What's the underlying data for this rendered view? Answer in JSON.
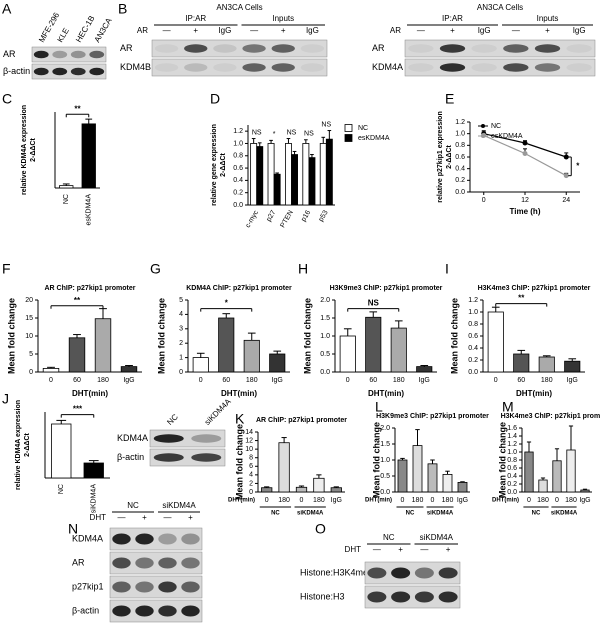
{
  "panel_labels": [
    "A",
    "B",
    "C",
    "D",
    "E",
    "F",
    "G",
    "H",
    "I",
    "J",
    "K",
    "L",
    "M",
    "N",
    "O"
  ],
  "blots": {
    "A": {
      "lanes": [
        "MFE-296",
        "KLE",
        "HEC-1B",
        "AN3CA"
      ],
      "rows": [
        "AR",
        "β-actin"
      ]
    },
    "B_left": {
      "title": "AN3CA Cells",
      "treatment": "AR",
      "groups": [
        "IP:AR",
        "Inputs"
      ],
      "lanes": [
        "—",
        "+",
        "IgG",
        "—",
        "+",
        "IgG"
      ],
      "rows": [
        "AR",
        "KDM4B"
      ]
    },
    "B_right": {
      "title": "AN3CA Cells",
      "treatment": "AR",
      "groups": [
        "IP:AR",
        "Inputs"
      ],
      "lanes": [
        "—",
        "+",
        "IgG",
        "—",
        "+",
        "IgG"
      ],
      "rows": [
        "AR",
        "KDM4A"
      ]
    },
    "J": {
      "lanes": [
        "NC",
        "siKDM4A"
      ],
      "rows": [
        "KDM4A",
        "β-actin"
      ]
    },
    "N": {
      "treatment": "DHT",
      "groups": [
        "NC",
        "siKDM4A"
      ],
      "lanes": [
        "—",
        "+",
        "—",
        "+"
      ],
      "rows": [
        "KDM4A",
        "AR",
        "p27kip1",
        "β-actin"
      ]
    },
    "O": {
      "treatment": "DHT",
      "groups": [
        "NC",
        "siKDM4A"
      ],
      "lanes": [
        "—",
        "+",
        "—",
        "+"
      ],
      "rows": [
        "Histone:H3K4me3",
        "Histone:H3"
      ]
    }
  },
  "chart_data": [
    {
      "type": "bar",
      "ylabel": "relative KDM4A expression",
      "ylabel_unit": "2-ΔΔCt",
      "categories": [
        "NC",
        "esKDM4A"
      ],
      "values": [
        1,
        27
      ],
      "errors": [
        0.7,
        2
      ],
      "colors": [
        "#ffffff",
        "#000000"
      ],
      "ylim": [
        0,
        32
      ],
      "annotations": [
        "**"
      ]
    },
    {
      "type": "bar",
      "ylabel": "relative gene expression",
      "ylabel_unit": "2-ΔΔCt",
      "categories": [
        "c-myc",
        "p27",
        "PTEN",
        "p16",
        "p53"
      ],
      "series": [
        {
          "name": "NC",
          "color": "#ffffff",
          "values": [
            1.0,
            1.0,
            1.0,
            1.0,
            1.0
          ],
          "errors": [
            0.08,
            0.05,
            0.08,
            0.06,
            0.1
          ]
        },
        {
          "name": "esKDM4A",
          "color": "#000000",
          "values": [
            0.95,
            0.5,
            0.82,
            0.77,
            1.07
          ],
          "errors": [
            0.06,
            0.02,
            0.05,
            0.05,
            0.14
          ]
        }
      ],
      "ylim": [
        0,
        1.3
      ],
      "yticks": [
        {
          "value": 0,
          "label": "0.0"
        },
        0.2,
        0.4,
        0.6,
        0.8,
        {
          "value": 1,
          "label": "1.0"
        },
        1.2
      ],
      "annotations": [
        "NS",
        "*",
        "NS",
        "NS",
        "NS"
      ]
    },
    {
      "type": "line",
      "xlabel": "Time (h)",
      "ylabel": "relative p27kip1 expression",
      "ylabel_unit": "2-ΔΔCt",
      "x": [
        0,
        12,
        24
      ],
      "series": [
        {
          "name": "NC",
          "color": "#000000",
          "values": [
            1.0,
            0.84,
            0.6
          ],
          "errors": [
            0.05,
            0.04,
            0.07
          ]
        },
        {
          "name": "esKDM4A",
          "color": "#999999",
          "values": [
            0.97,
            0.66,
            0.28
          ],
          "errors": [
            0.06,
            0.08,
            0.04
          ]
        }
      ],
      "xlim": [
        -4,
        28
      ],
      "xticks": [
        0,
        12,
        24
      ],
      "ylim": [
        0,
        1.2
      ],
      "yticks": [
        {
          "value": 0,
          "label": "0.0"
        },
        0.2,
        0.4,
        0.6,
        0.8,
        {
          "value": 1,
          "label": "1.0"
        },
        1.2
      ],
      "annotations": [
        "*"
      ]
    },
    {
      "type": "bar",
      "title": "AR ChIP: p27kip1 promoter",
      "xlabel": "DHT(min)",
      "ylabel": "Mean fold change",
      "categories": [
        "0",
        "60",
        "180",
        "IgG"
      ],
      "values": [
        1.0,
        9.5,
        14.8,
        1.5
      ],
      "errors": [
        0.3,
        0.9,
        2.8,
        0.3
      ],
      "colors": [
        "#ffffff",
        "#555555",
        "#aaaaaa",
        "#333333"
      ],
      "ylim": [
        0,
        20
      ],
      "yticks": [
        0,
        5,
        10,
        15,
        20
      ],
      "annotations": [
        "**"
      ]
    },
    {
      "type": "bar",
      "title": "KDM4A ChIP: p27kip1 promoter",
      "xlabel": "DHT(min)",
      "ylabel": "Mean fold change",
      "categories": [
        "0",
        "60",
        "180",
        "IgG"
      ],
      "values": [
        1.0,
        3.75,
        2.2,
        1.25
      ],
      "errors": [
        0.3,
        0.3,
        0.5,
        0.2
      ],
      "colors": [
        "#ffffff",
        "#555555",
        "#aaaaaa",
        "#333333"
      ],
      "ylim": [
        0,
        5
      ],
      "yticks": [
        0,
        1,
        2,
        3,
        4,
        5
      ],
      "annotations": [
        "*"
      ]
    },
    {
      "type": "bar",
      "title": "H3K9me3 ChIP: p27kip1 promoter",
      "xlabel": "DHT(min)",
      "ylabel": "Mean fold change",
      "categories": [
        "0",
        "60",
        "180",
        "IgG"
      ],
      "values": [
        1.0,
        1.52,
        1.22,
        0.15
      ],
      "errors": [
        0.2,
        0.15,
        0.2,
        0.03
      ],
      "colors": [
        "#ffffff",
        "#555555",
        "#aaaaaa",
        "#333333"
      ],
      "ylim": [
        0,
        2
      ],
      "yticks": [
        {
          "value": 0,
          "label": "0.0"
        },
        0.5,
        {
          "value": 1,
          "label": "1.0"
        },
        1.5,
        {
          "value": 2,
          "label": "2.0"
        }
      ],
      "annotations": [
        "NS"
      ]
    },
    {
      "type": "bar",
      "title": "H3K4me3 ChIP: p27kip1 promoter",
      "xlabel": "DHT(min)",
      "ylabel": "Mean fold change",
      "categories": [
        "0",
        "60",
        "180",
        "IgG"
      ],
      "values": [
        1.0,
        0.3,
        0.25,
        0.18
      ],
      "errors": [
        0.08,
        0.06,
        0.02,
        0.04
      ],
      "colors": [
        "#ffffff",
        "#555555",
        "#aaaaaa",
        "#333333"
      ],
      "ylim": [
        0,
        1.2
      ],
      "yticks": [
        {
          "value": 0,
          "label": "0.0"
        },
        0.2,
        0.4,
        0.6,
        0.8,
        {
          "value": 1,
          "label": "1.0"
        },
        1.2
      ],
      "annotations": [
        "**"
      ]
    },
    {
      "type": "bar",
      "ylabel": "relative KDM4A expression",
      "ylabel_unit": "2-ΔΔCt",
      "categories": [
        "NC",
        "siKDM4A"
      ],
      "values": [
        0.9,
        0.25
      ],
      "errors": [
        0.06,
        0.04
      ],
      "colors": [
        "#ffffff",
        "#000000"
      ],
      "ylim": [
        0,
        1.1
      ],
      "annotations": [
        "***"
      ]
    },
    {
      "type": "bar",
      "title": "AR ChIP: p27kip1 promoter",
      "xlabel": "DHT(min)",
      "ylabel": "Mean fold change",
      "categories": [
        "0",
        "180",
        "0",
        "180",
        "IgG"
      ],
      "groups": [
        "NC",
        "siKDM4A"
      ],
      "values": [
        1.0,
        11.5,
        1.1,
        3.2,
        1.0
      ],
      "errors": [
        0.2,
        1.2,
        0.3,
        0.8,
        0.2
      ],
      "colors": [
        "#888888",
        "#dddddd",
        "#bbbbbb",
        "#eeeeee",
        "#888888"
      ],
      "ylim": [
        0,
        14
      ],
      "yticks": [
        0,
        2,
        4,
        6,
        8,
        10,
        12,
        14
      ]
    },
    {
      "type": "bar",
      "title": "H3K9me3 ChIP: p27kip1 promoter",
      "xlabel": "DHT(min)",
      "ylabel": "Mean fold change",
      "categories": [
        "0",
        "180",
        "0",
        "180",
        "IgG"
      ],
      "groups": [
        "NC",
        "siKDM4A"
      ],
      "values": [
        1.0,
        1.45,
        0.88,
        0.55,
        0.3
      ],
      "errors": [
        0.05,
        0.5,
        0.12,
        0.1,
        0.02
      ],
      "colors": [
        "#888888",
        "#dddddd",
        "#bbbbbb",
        "#eeeeee",
        "#888888"
      ],
      "ylim": [
        0,
        2
      ],
      "yticks": [
        {
          "value": 0,
          "label": "0.0"
        },
        0.5,
        {
          "value": 1,
          "label": "1.0"
        },
        1.5,
        {
          "value": 2,
          "label": "2.0"
        }
      ]
    },
    {
      "type": "bar",
      "title": "H3K4me3 ChIP: p27kip1 promoter",
      "xlabel": "DHT(min)",
      "ylabel": "Mean fold change",
      "categories": [
        "0",
        "180",
        "0",
        "180",
        "IgG"
      ],
      "groups": [
        "NC",
        "siKDM4A"
      ],
      "values": [
        1.0,
        0.3,
        0.78,
        1.05,
        0.05
      ],
      "errors": [
        0.25,
        0.05,
        0.3,
        0.6,
        0.02
      ],
      "colors": [
        "#888888",
        "#dddddd",
        "#bbbbbb",
        "#eeeeee",
        "#888888"
      ],
      "ylim": [
        0,
        1.6
      ],
      "yticks": [
        {
          "value": 0,
          "label": "0.0"
        },
        0.2,
        0.4,
        0.6,
        0.8,
        {
          "value": 1,
          "label": "1.0"
        },
        1.2,
        1.4,
        1.6
      ]
    }
  ]
}
